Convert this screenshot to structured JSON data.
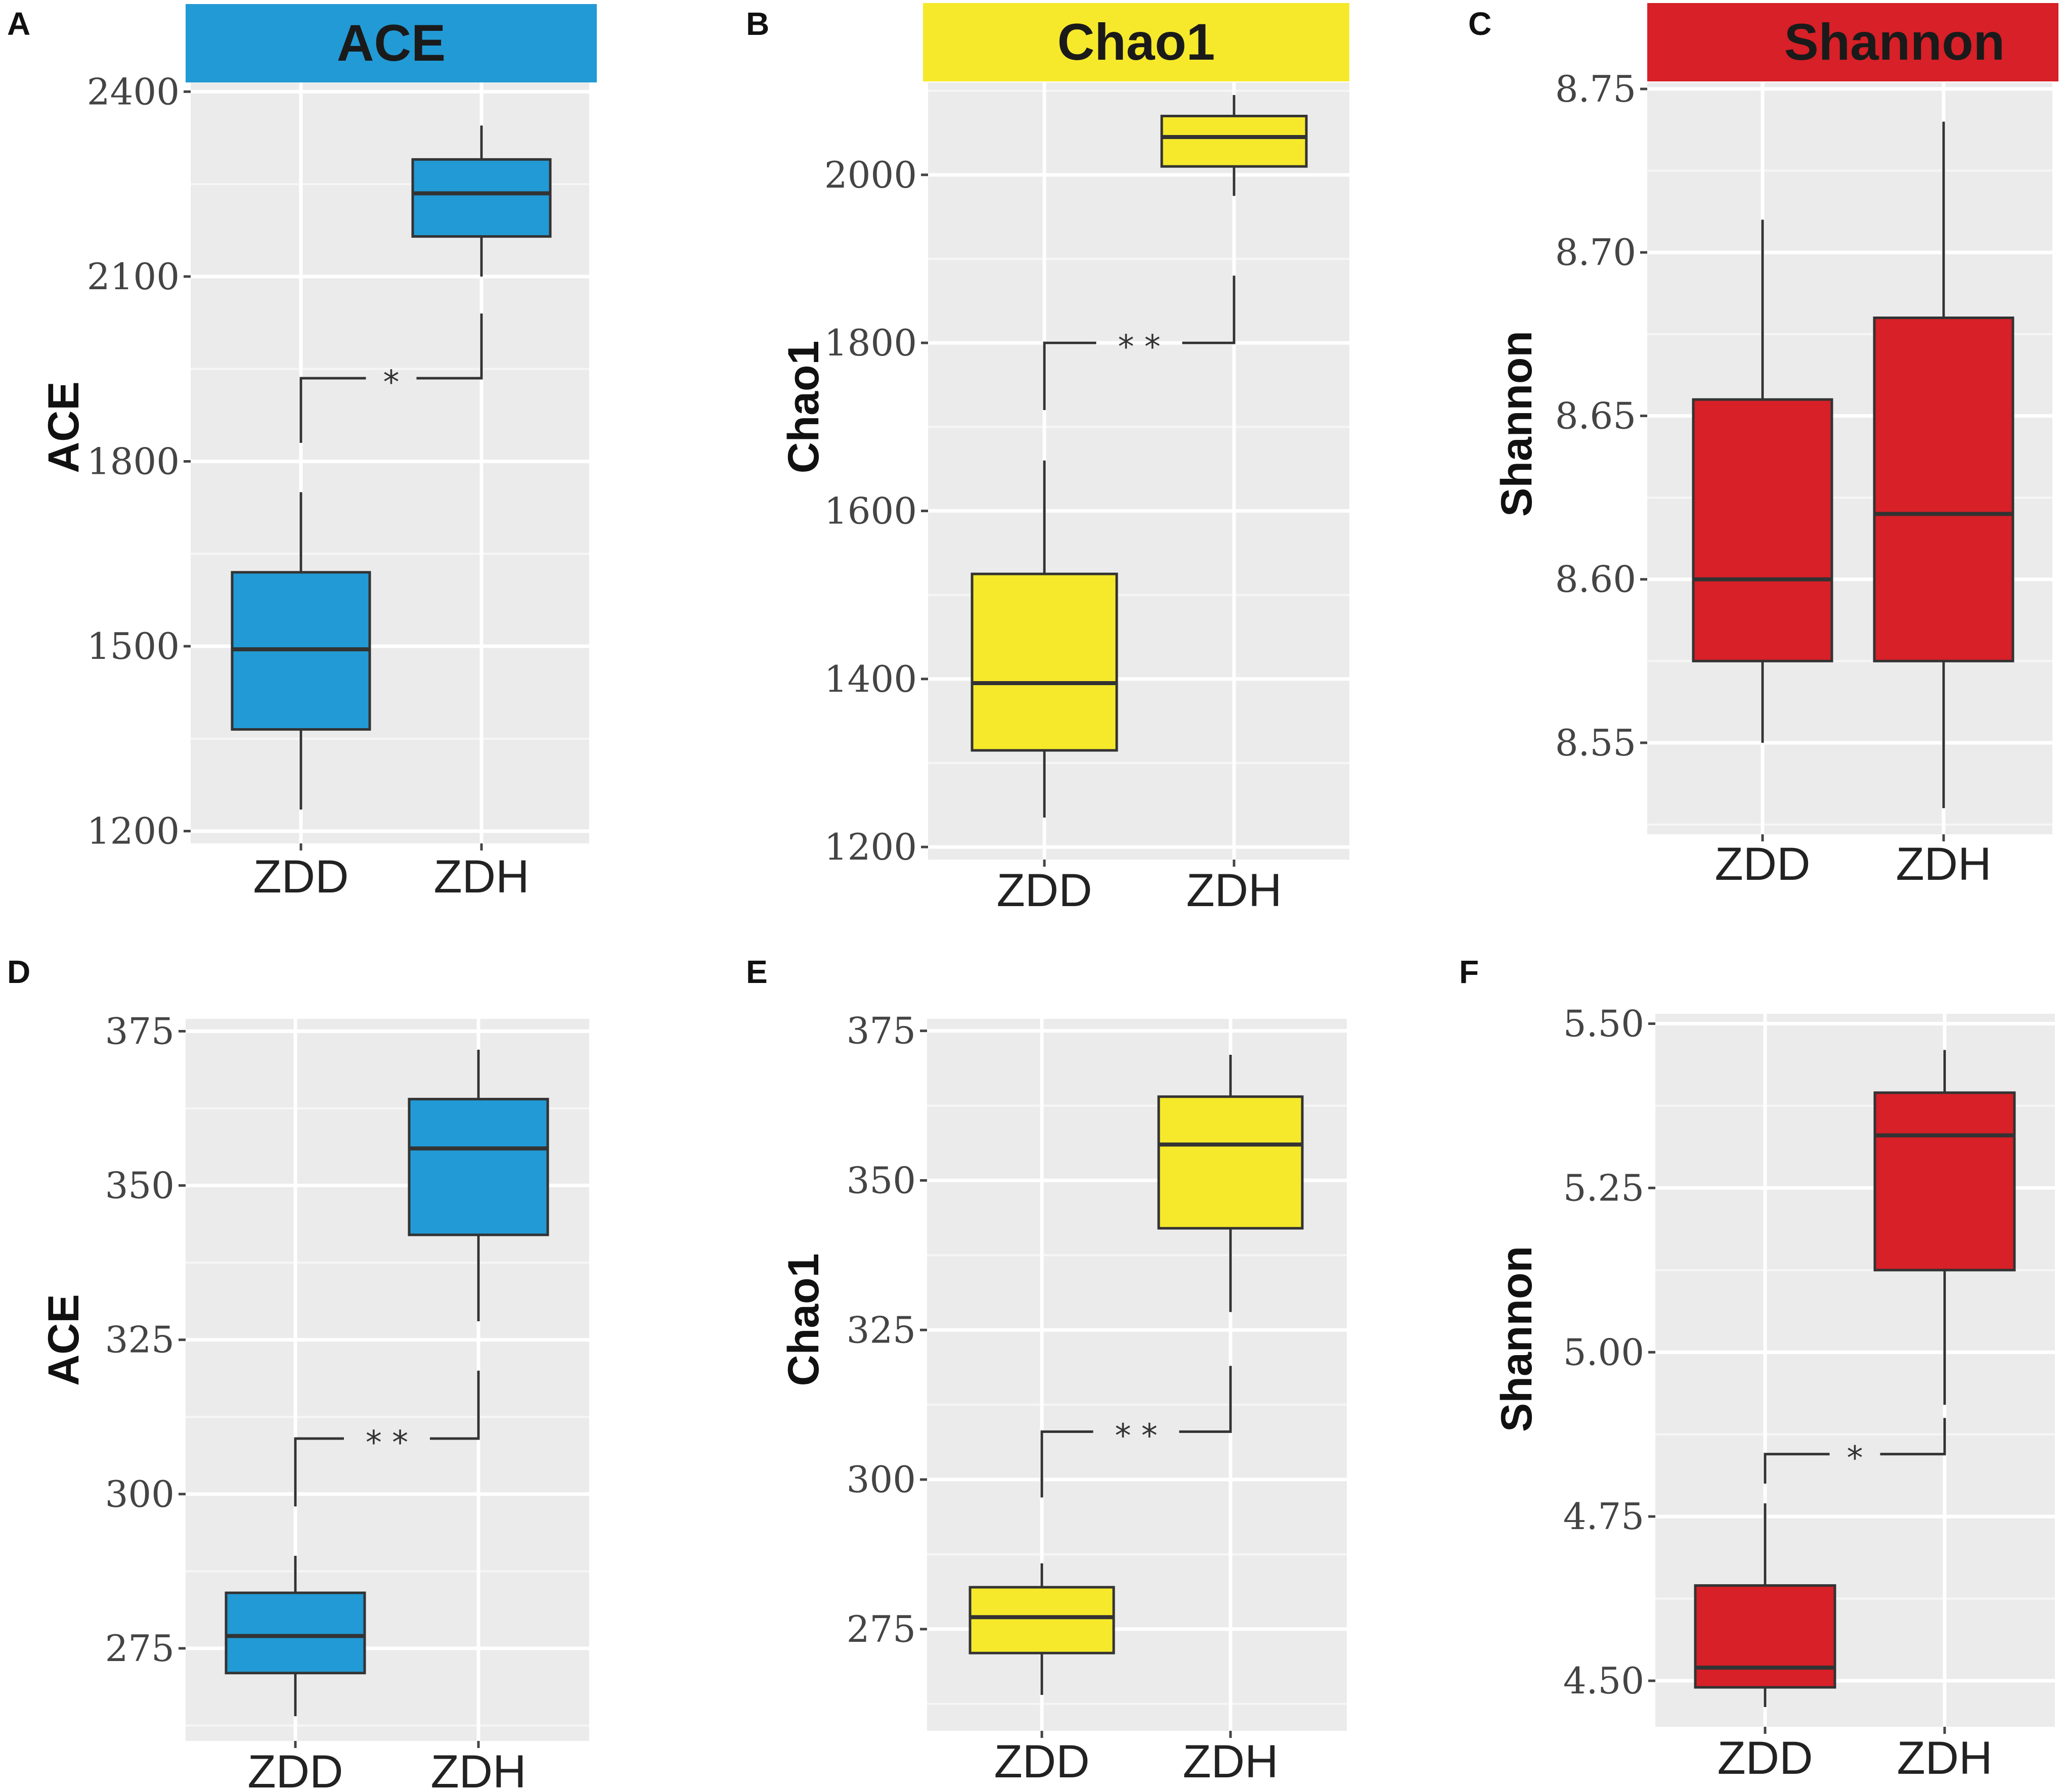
{
  "chart_data": [
    {
      "id": "A",
      "type": "box",
      "letter": "A",
      "title": "ACE",
      "title_color": "#229ad5",
      "ylabel": "ACE",
      "xlabel": "",
      "ylim": [
        1180,
        2415
      ],
      "yticks": [
        1200,
        1500,
        1800,
        2100,
        2400
      ],
      "tick_labels": [
        "1200",
        "1500",
        "1800",
        "2100",
        "2400"
      ],
      "fill": "#229ad5",
      "categories": [
        "ZDD",
        "ZDH"
      ],
      "boxes": [
        {
          "name": "ZDD",
          "min": 1235,
          "q1": 1365,
          "median": 1495,
          "q3": 1620,
          "max": 1750
        },
        {
          "name": "ZDH",
          "min": 2100,
          "q1": 2165,
          "median": 2235,
          "q3": 2290,
          "max": 2345
        }
      ],
      "significance": {
        "label": "*",
        "level": 1935,
        "left_end": 1830,
        "right_end": 2040
      }
    },
    {
      "id": "B",
      "type": "box",
      "letter": "B",
      "title": "Chao1",
      "title_color": "#f6e92b",
      "ylabel": "Chao1",
      "xlabel": "",
      "ylim": [
        1185,
        2110
      ],
      "yticks": [
        1200,
        1400,
        1600,
        1800,
        2000
      ],
      "tick_labels": [
        "1200",
        "1400",
        "1600",
        "1800",
        "2000"
      ],
      "fill": "#f6e92b",
      "categories": [
        "ZDD",
        "ZDH"
      ],
      "boxes": [
        {
          "name": "ZDD",
          "min": 1235,
          "q1": 1315,
          "median": 1395,
          "q3": 1525,
          "max": 1660
        },
        {
          "name": "ZDH",
          "min": 1975,
          "q1": 2010,
          "median": 2045,
          "q3": 2070,
          "max": 2095
        }
      ],
      "significance": {
        "label": "* *",
        "level": 1800,
        "left_end": 1720,
        "right_end": 1880
      }
    },
    {
      "id": "C",
      "type": "box",
      "letter": "C",
      "title": "Shannon",
      "title_color": "#d72027",
      "ylabel": "Shannon",
      "xlabel": "",
      "ylim": [
        8.522,
        8.752
      ],
      "yticks": [
        8.55,
        8.6,
        8.65,
        8.7,
        8.75
      ],
      "tick_labels": [
        "8.55",
        "8.60",
        "8.65",
        "8.70",
        "8.75"
      ],
      "fill": "#d72027",
      "categories": [
        "ZDD",
        "ZDH"
      ],
      "boxes": [
        {
          "name": "ZDD",
          "min": 8.55,
          "q1": 8.575,
          "median": 8.6,
          "q3": 8.655,
          "max": 8.71
        },
        {
          "name": "ZDH",
          "min": 8.53,
          "q1": 8.575,
          "median": 8.62,
          "q3": 8.68,
          "max": 8.74
        }
      ],
      "significance": null
    },
    {
      "id": "D",
      "type": "box",
      "letter": "D",
      "title": "",
      "title_color": "",
      "ylabel": "ACE",
      "xlabel": "",
      "ylim": [
        260,
        377
      ],
      "yticks": [
        275,
        300,
        325,
        350,
        375
      ],
      "tick_labels": [
        "275",
        "300",
        "325",
        "350",
        "375"
      ],
      "fill": "#229ad5",
      "categories": [
        "ZDD",
        "ZDH"
      ],
      "boxes": [
        {
          "name": "ZDD",
          "min": 264,
          "q1": 271,
          "median": 277,
          "q3": 284,
          "max": 290
        },
        {
          "name": "ZDH",
          "min": 328,
          "q1": 342,
          "median": 356,
          "q3": 364,
          "max": 372
        }
      ],
      "significance": {
        "label": "* *",
        "level": 309,
        "left_end": 298,
        "right_end": 320
      }
    },
    {
      "id": "E",
      "type": "box",
      "letter": "E",
      "title": "",
      "title_color": "",
      "ylabel": "Chao1",
      "xlabel": "",
      "ylim": [
        258,
        377
      ],
      "yticks": [
        275,
        300,
        325,
        350,
        375
      ],
      "tick_labels": [
        "275",
        "300",
        "325",
        "350",
        "375"
      ],
      "fill": "#f6e92b",
      "categories": [
        "ZDD",
        "ZDH"
      ],
      "boxes": [
        {
          "name": "ZDD",
          "min": 264,
          "q1": 271,
          "median": 277,
          "q3": 282,
          "max": 286
        },
        {
          "name": "ZDH",
          "min": 328,
          "q1": 342,
          "median": 356,
          "q3": 364,
          "max": 371
        }
      ],
      "significance": {
        "label": "* *",
        "level": 308,
        "left_end": 297,
        "right_end": 319
      }
    },
    {
      "id": "F",
      "type": "box",
      "letter": "F",
      "title": "",
      "title_color": "",
      "ylabel": "Shannon",
      "xlabel": "",
      "ylim": [
        4.43,
        5.515
      ],
      "yticks": [
        4.5,
        4.75,
        5.0,
        5.25,
        5.5
      ],
      "tick_labels": [
        "4.50",
        "4.75",
        "5.00",
        "5.25",
        "5.50"
      ],
      "fill": "#d72027",
      "categories": [
        "ZDD",
        "ZDH"
      ],
      "boxes": [
        {
          "name": "ZDD",
          "min": 4.46,
          "q1": 4.49,
          "median": 4.52,
          "q3": 4.645,
          "max": 4.77
        },
        {
          "name": "ZDH",
          "min": 4.92,
          "q1": 5.125,
          "median": 5.33,
          "q3": 5.395,
          "max": 5.46
        }
      ],
      "significance": {
        "label": "*",
        "level": 4.845,
        "left_end": 4.8,
        "right_end": 4.9
      }
    }
  ]
}
